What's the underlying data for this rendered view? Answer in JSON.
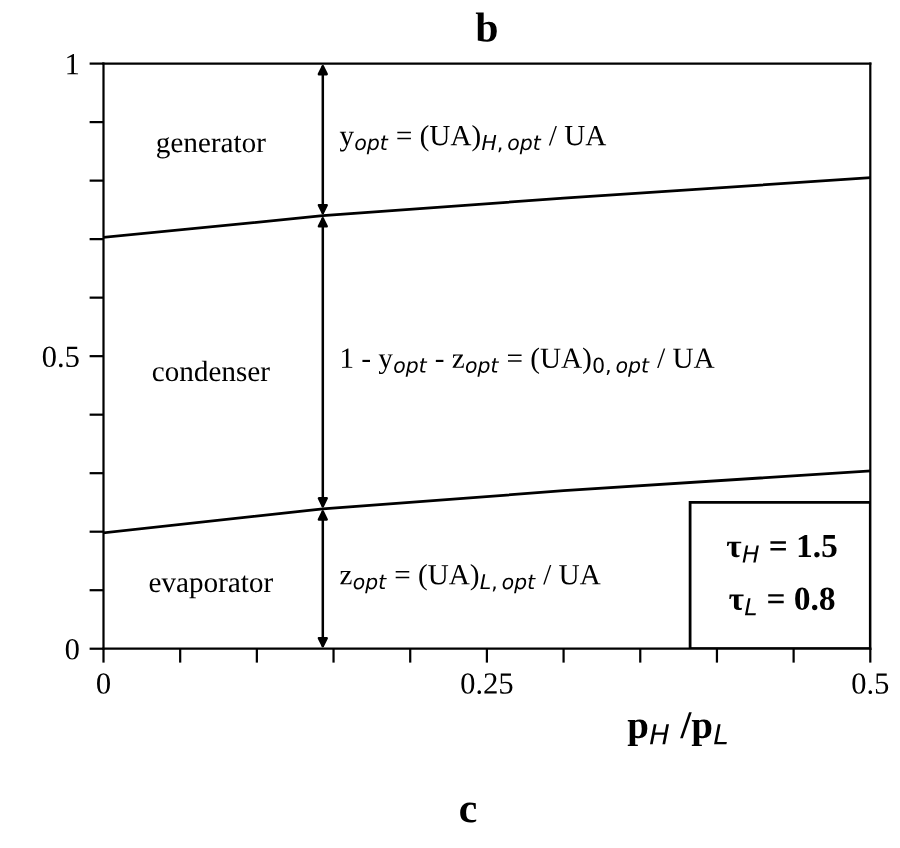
{
  "chart_data": {
    "type": "line",
    "title": "b",
    "xlabel": "p$_{H}$ /p$_{L}$",
    "x": [
      0,
      0.143,
      0.3,
      0.5
    ],
    "series": [
      {
        "color": "#000000",
        "values": [
          0.703,
          0.74,
          0.77,
          0.805
        ]
      },
      {
        "color": "#000000",
        "values": [
          0.198,
          0.239,
          0.27,
          0.304
        ]
      }
    ],
    "xlim": [
      0,
      0.5
    ],
    "ylim": [
      0,
      1
    ],
    "xticks": [
      0,
      {
        "value": 0.05,
        "label": null
      },
      {
        "value": 0.1,
        "label": null
      },
      {
        "value": 0.15,
        "label": null
      },
      {
        "value": 0.2,
        "label": null
      },
      0.25,
      {
        "value": 0.3,
        "label": null
      },
      {
        "value": 0.35,
        "label": null
      },
      {
        "value": 0.4,
        "label": null
      },
      {
        "value": 0.45,
        "label": null
      },
      0.5
    ],
    "yticks": [
      0,
      {
        "value": 0.1,
        "label": null
      },
      {
        "value": 0.2,
        "label": null
      },
      {
        "value": 0.3,
        "label": null
      },
      {
        "value": 0.4,
        "label": null
      },
      0.5,
      {
        "value": 0.6,
        "label": null
      },
      {
        "value": 0.7,
        "label": null
      },
      {
        "value": 0.8,
        "label": null
      },
      {
        "value": 0.9,
        "label": null
      },
      1
    ],
    "grid": false,
    "legend": false,
    "marker": "none",
    "line_style": "solid",
    "annotations": [
      "generator",
      "condenser",
      "evaporator",
      "y$_{opt}$ = (UA)$_{H,opt}$ / UA",
      "1 - y$_{opt}$ - z$_{opt}$ = (UA)$_{0,opt}$ / UA",
      "z$_{opt}$ = (UA)$_{L,opt}$ / UA",
      "τ$_{H}$ = 1.5",
      "τ$_{L}$ = 0.8",
      "c"
    ]
  }
}
